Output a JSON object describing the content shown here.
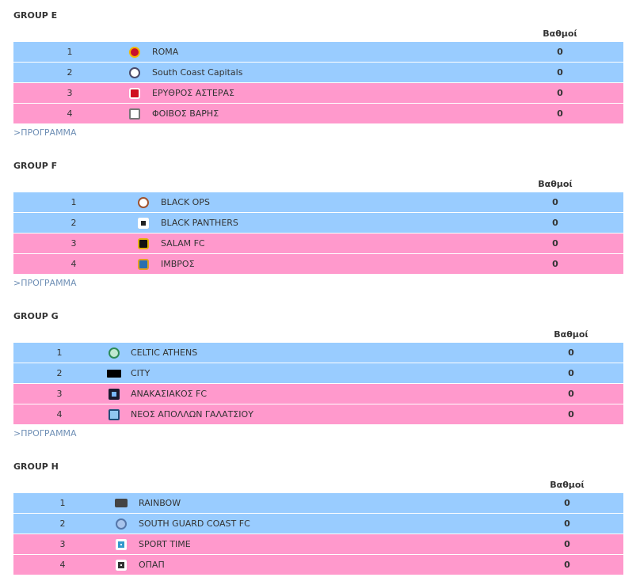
{
  "points_header": "Βαθμοί",
  "program_link": ">ΠΡΟΓΡΑΜΜΑ",
  "groups": [
    {
      "title": "GROUP E",
      "teams": [
        {
          "pos": "1",
          "name": "ROMA",
          "points": "0",
          "logo_icon": "roma-crest-icon",
          "logo_color": "#8b1a1a"
        },
        {
          "pos": "2",
          "name": "South Coast Capitals",
          "points": "0",
          "logo_icon": "south-coast-capitals-crest-icon",
          "logo_color": "#4a4a6a"
        },
        {
          "pos": "3",
          "name": "ΕΡΥΘΡΟΣ ΑΣΤΕΡΑΣ",
          "points": "0",
          "logo_icon": "erythros-asteras-crest-icon",
          "logo_color": "#d01020"
        },
        {
          "pos": "4",
          "name": "ΦΟΙΒΟΣ ΒΑΡΗΣ",
          "points": "0",
          "logo_icon": "foivos-varis-crest-icon",
          "logo_color": "#777777"
        }
      ]
    },
    {
      "title": "GROUP F",
      "teams": [
        {
          "pos": "1",
          "name": "BLACK OPS",
          "points": "0",
          "logo_icon": "black-ops-crest-icon",
          "logo_color": "#a0522d"
        },
        {
          "pos": "2",
          "name": "BLACK PANTHERS",
          "points": "0",
          "logo_icon": "black-panthers-crest-icon",
          "logo_color": "#222222"
        },
        {
          "pos": "3",
          "name": "SALAM FC",
          "points": "0",
          "logo_icon": "salam-fc-crest-icon",
          "logo_color": "#111111"
        },
        {
          "pos": "4",
          "name": "ΙΜΒΡΟΣ",
          "points": "0",
          "logo_icon": "imvros-crest-icon",
          "logo_color": "#e0a020"
        }
      ]
    },
    {
      "title": "GROUP G",
      "teams": [
        {
          "pos": "1",
          "name": "CELTIC ATHENS",
          "points": "0",
          "logo_icon": "celtic-athens-crest-icon",
          "logo_color": "#2e8b57"
        },
        {
          "pos": "2",
          "name": "CITY",
          "points": "0",
          "logo_icon": "city-crest-icon",
          "logo_color": "#000000"
        },
        {
          "pos": "3",
          "name": "ΑΝΑΚΑΣΙΑΚΟΣ FC",
          "points": "0",
          "logo_icon": "anakasiakos-fc-crest-icon",
          "logo_color": "#1a1a2e"
        },
        {
          "pos": "4",
          "name": "ΝΕΟΣ ΑΠΟΛΛΩΝ ΓΑΛΑΤΣΙΟΥ",
          "points": "0",
          "logo_icon": "neos-apollon-galatsiou-crest-icon",
          "logo_color": "#1f4e79"
        }
      ]
    },
    {
      "title": "GROUP H",
      "teams": [
        {
          "pos": "1",
          "name": "RAINBOW",
          "points": "0",
          "logo_icon": "rainbow-crest-icon",
          "logo_color": "#444444"
        },
        {
          "pos": "2",
          "name": "SOUTH GUARD COAST FC",
          "points": "0",
          "logo_icon": "south-guard-coast-fc-crest-icon",
          "logo_color": "#5577aa"
        },
        {
          "pos": "3",
          "name": "SPORT TIME",
          "points": "0",
          "logo_icon": "sport-time-crest-icon",
          "logo_color": "#3399cc"
        },
        {
          "pos": "4",
          "name": "ΟΠΑΠ",
          "points": "0",
          "logo_icon": "opap-crest-icon",
          "logo_color": "#333333"
        }
      ]
    }
  ]
}
